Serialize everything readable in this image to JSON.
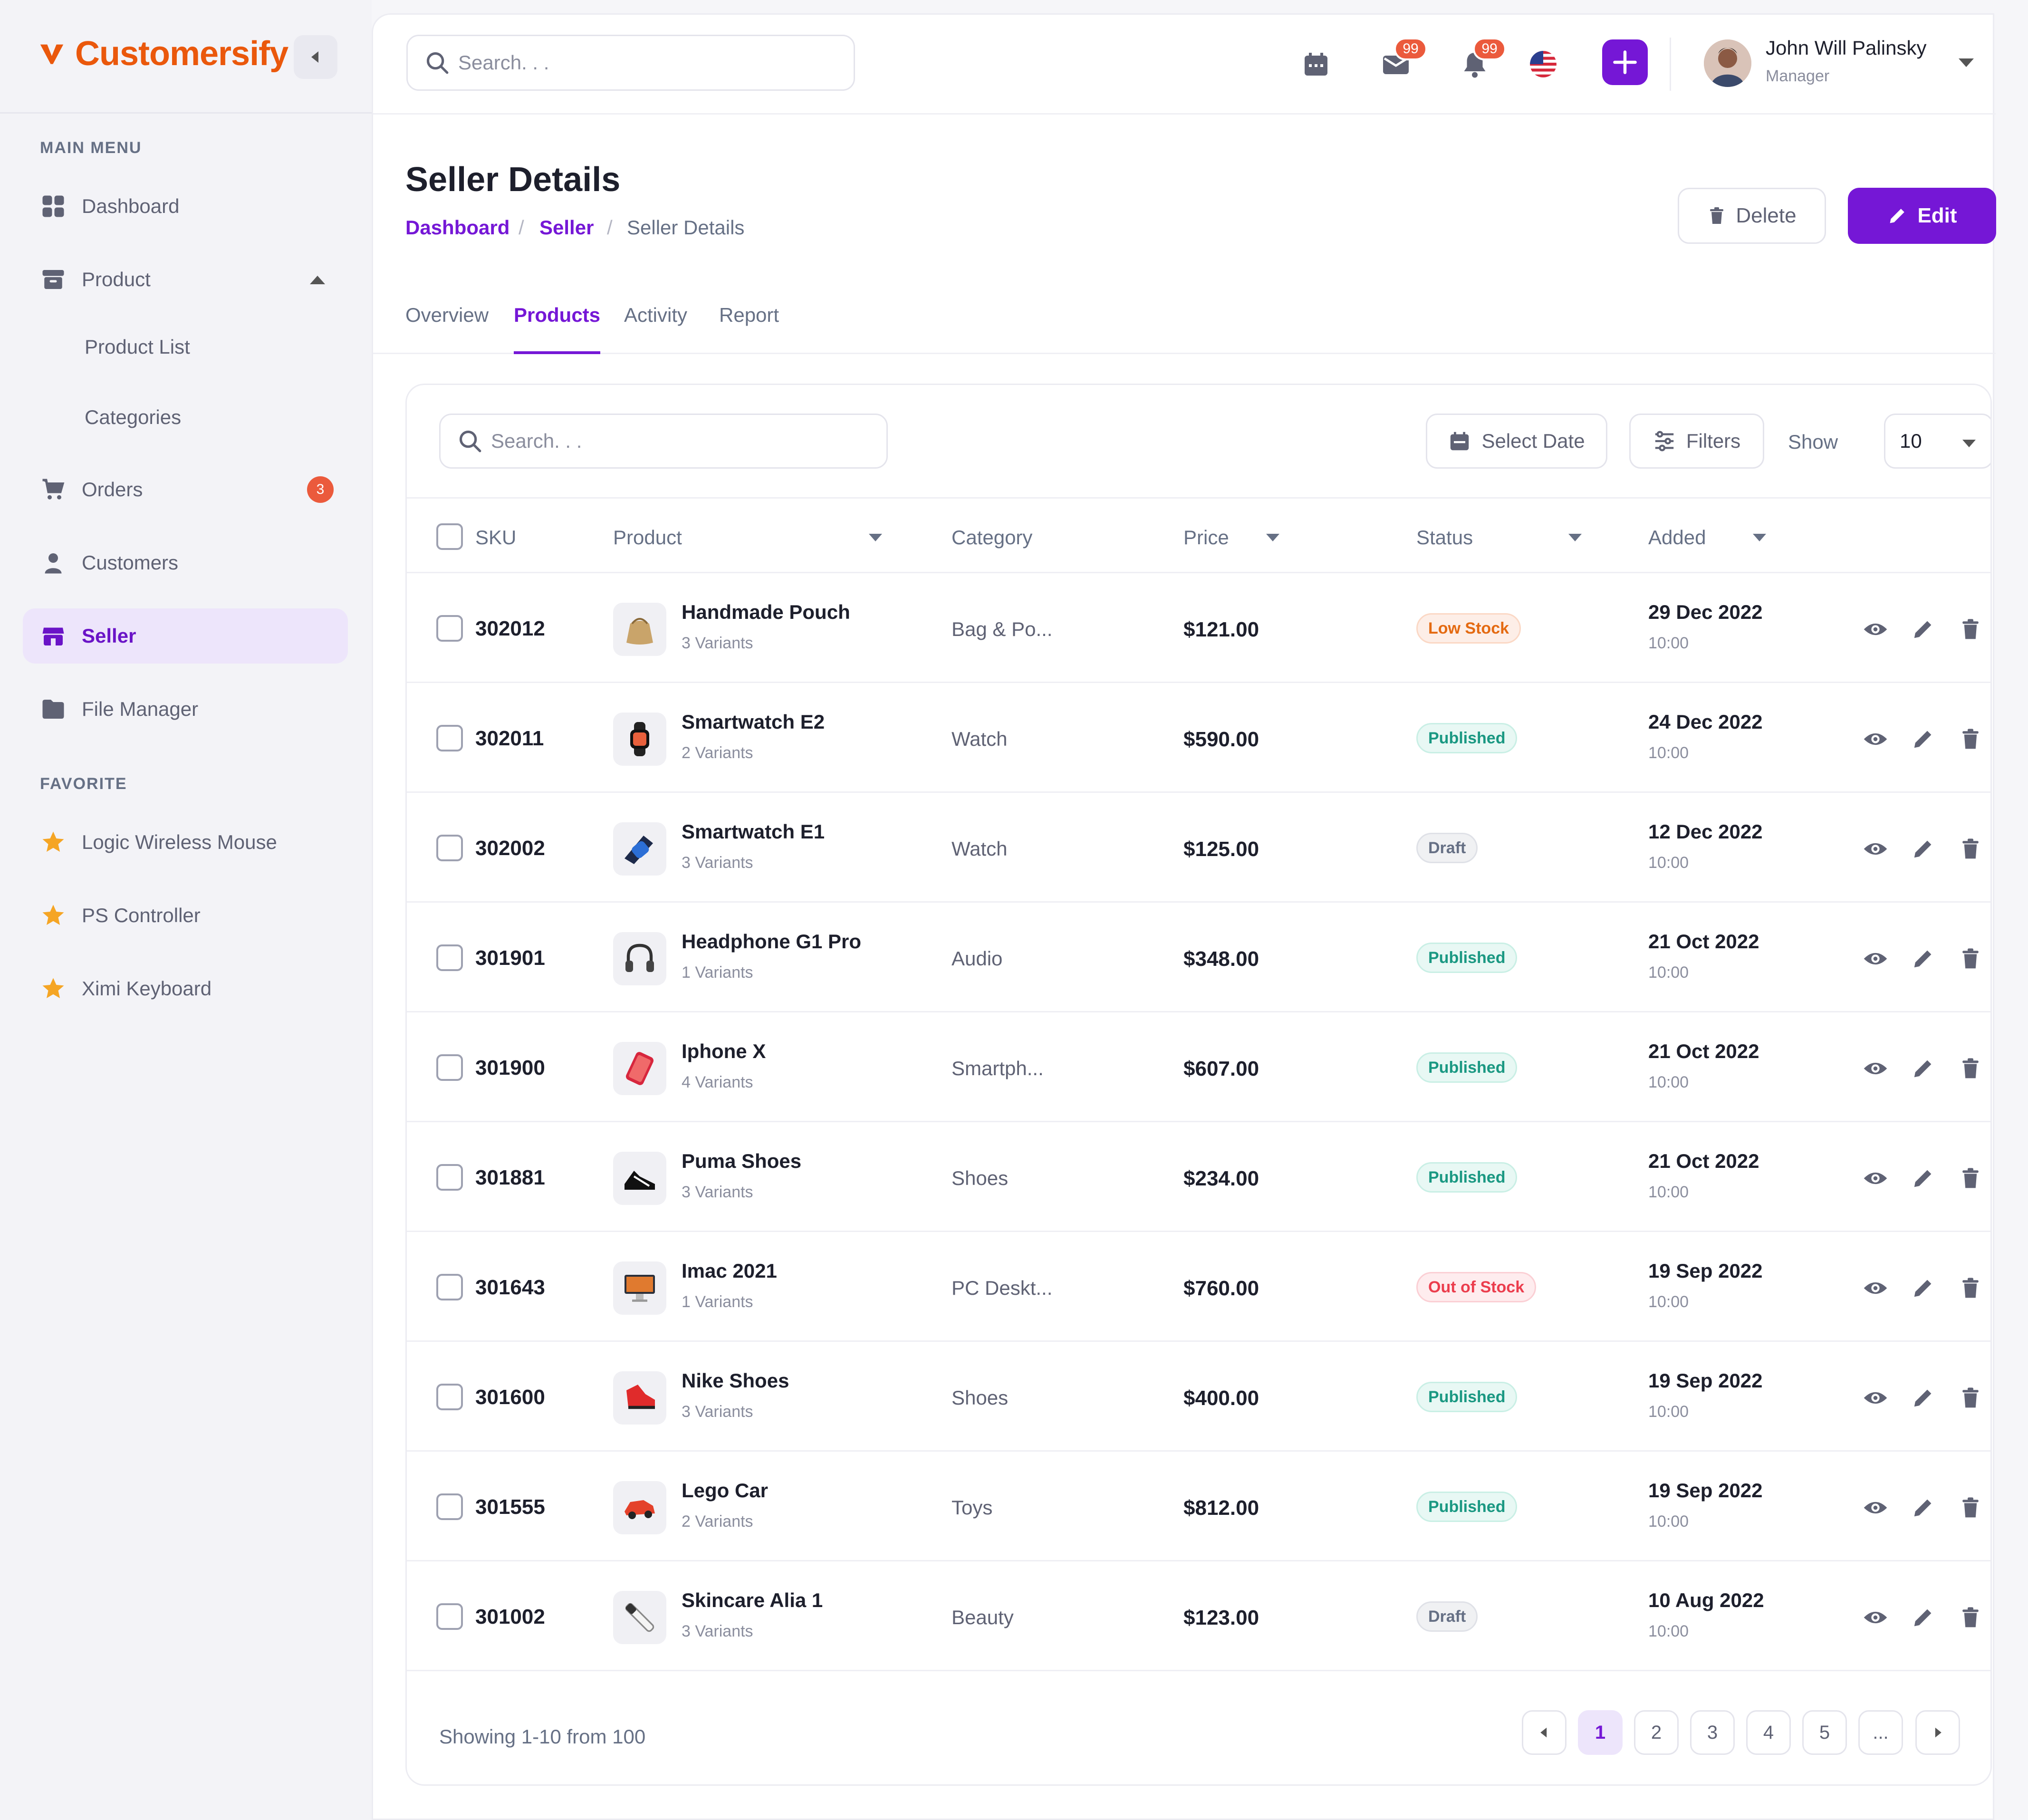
{
  "brand": {
    "name": "Customersify",
    "accent": "#7517d6",
    "logo_color": "#ea580c"
  },
  "sidebar": {
    "main_menu_heading": "MAIN MENU",
    "items": [
      {
        "label": "Dashboard",
        "icon": "dashboard-grid-icon"
      },
      {
        "label": "Product",
        "icon": "archive-box-icon"
      },
      {
        "label": "Product List"
      },
      {
        "label": "Categories"
      },
      {
        "label": "Orders",
        "icon": "cart-icon",
        "badge": "3"
      },
      {
        "label": "Customers",
        "icon": "person-icon"
      },
      {
        "label": "Seller",
        "icon": "store-icon"
      },
      {
        "label": "File Manager",
        "icon": "folder-icon"
      }
    ],
    "favorite_heading": "FAVORITE",
    "favorites": [
      {
        "label": "Logic Wireless Mouse",
        "icon": "star-icon"
      },
      {
        "label": "PS Controller",
        "icon": "star-icon"
      },
      {
        "label": "Ximi Keyboard",
        "icon": "star-icon"
      }
    ]
  },
  "topbar": {
    "search_placeholder": "Search. . .",
    "mail_count": "99",
    "bell_count": "99",
    "user_name": "John Will Palinsky",
    "user_role": "Manager"
  },
  "page": {
    "title": "Seller Details",
    "breadcrumb": [
      "Dashboard",
      "Seller",
      "Seller Details"
    ],
    "breadcrumb_sep": "/",
    "delete_label": "Delete",
    "edit_label": "Edit",
    "tabs": [
      "Overview",
      "Products",
      "Activity",
      "Report"
    ]
  },
  "table": {
    "search_placeholder": "Search. . .",
    "select_date_label": "Select Date",
    "filters_label": "Filters",
    "show_label": "Show",
    "show_value": "10",
    "columns": [
      "SKU",
      "Product",
      "Category",
      "Price",
      "Status",
      "Added"
    ],
    "rows": [
      {
        "sku": "302012",
        "name": "Handmade Pouch",
        "variants": "3 Variants",
        "category": "Bag & Po...",
        "price": "$121.00",
        "status": "Low Stock",
        "status_type": "low",
        "date": "29 Dec 2022",
        "time": "10:00",
        "thumb": "pouch"
      },
      {
        "sku": "302011",
        "name": "Smartwatch E2",
        "variants": "2 Variants",
        "category": "Watch",
        "price": "$590.00",
        "status": "Published",
        "status_type": "published",
        "date": "24 Dec 2022",
        "time": "10:00",
        "thumb": "watch"
      },
      {
        "sku": "302002",
        "name": "Smartwatch E1",
        "variants": "3 Variants",
        "category": "Watch",
        "price": "$125.00",
        "status": "Draft",
        "status_type": "draft",
        "date": "12 Dec 2022",
        "time": "10:00",
        "thumb": "watch2"
      },
      {
        "sku": "301901",
        "name": "Headphone G1 Pro",
        "variants": "1 Variants",
        "category": "Audio",
        "price": "$348.00",
        "status": "Published",
        "status_type": "published",
        "date": "21 Oct 2022",
        "time": "10:00",
        "thumb": "headphone"
      },
      {
        "sku": "301900",
        "name": "Iphone X",
        "variants": "4 Variants",
        "category": "Smartph...",
        "price": "$607.00",
        "status": "Published",
        "status_type": "published",
        "date": "21 Oct 2022",
        "time": "10:00",
        "thumb": "phone"
      },
      {
        "sku": "301881",
        "name": "Puma Shoes",
        "variants": "3 Variants",
        "category": "Shoes",
        "price": "$234.00",
        "status": "Published",
        "status_type": "published",
        "date": "21 Oct 2022",
        "time": "10:00",
        "thumb": "shoe"
      },
      {
        "sku": "301643",
        "name": "Imac 2021",
        "variants": "1 Variants",
        "category": "PC Deskt...",
        "price": "$760.00",
        "status": "Out of Stock",
        "status_type": "out",
        "date": "19 Sep 2022",
        "time": "10:00",
        "thumb": "imac"
      },
      {
        "sku": "301600",
        "name": "Nike Shoes",
        "variants": "3 Variants",
        "category": "Shoes",
        "price": "$400.00",
        "status": "Published",
        "status_type": "published",
        "date": "19 Sep 2022",
        "time": "10:00",
        "thumb": "redshoe"
      },
      {
        "sku": "301555",
        "name": "Lego Car",
        "variants": "2 Variants",
        "category": "Toys",
        "price": "$812.00",
        "status": "Published",
        "status_type": "published",
        "date": "19 Sep 2022",
        "time": "10:00",
        "thumb": "car"
      },
      {
        "sku": "301002",
        "name": "Skincare Alia 1",
        "variants": "3 Variants",
        "category": "Beauty",
        "price": "$123.00",
        "status": "Draft",
        "status_type": "draft",
        "date": "10 Aug 2022",
        "time": "10:00",
        "thumb": "skincare"
      }
    ],
    "footer_text": "Showing 1-10 from 100",
    "pages": [
      "1",
      "2",
      "3",
      "4",
      "5",
      "..."
    ],
    "current_page": "1"
  }
}
